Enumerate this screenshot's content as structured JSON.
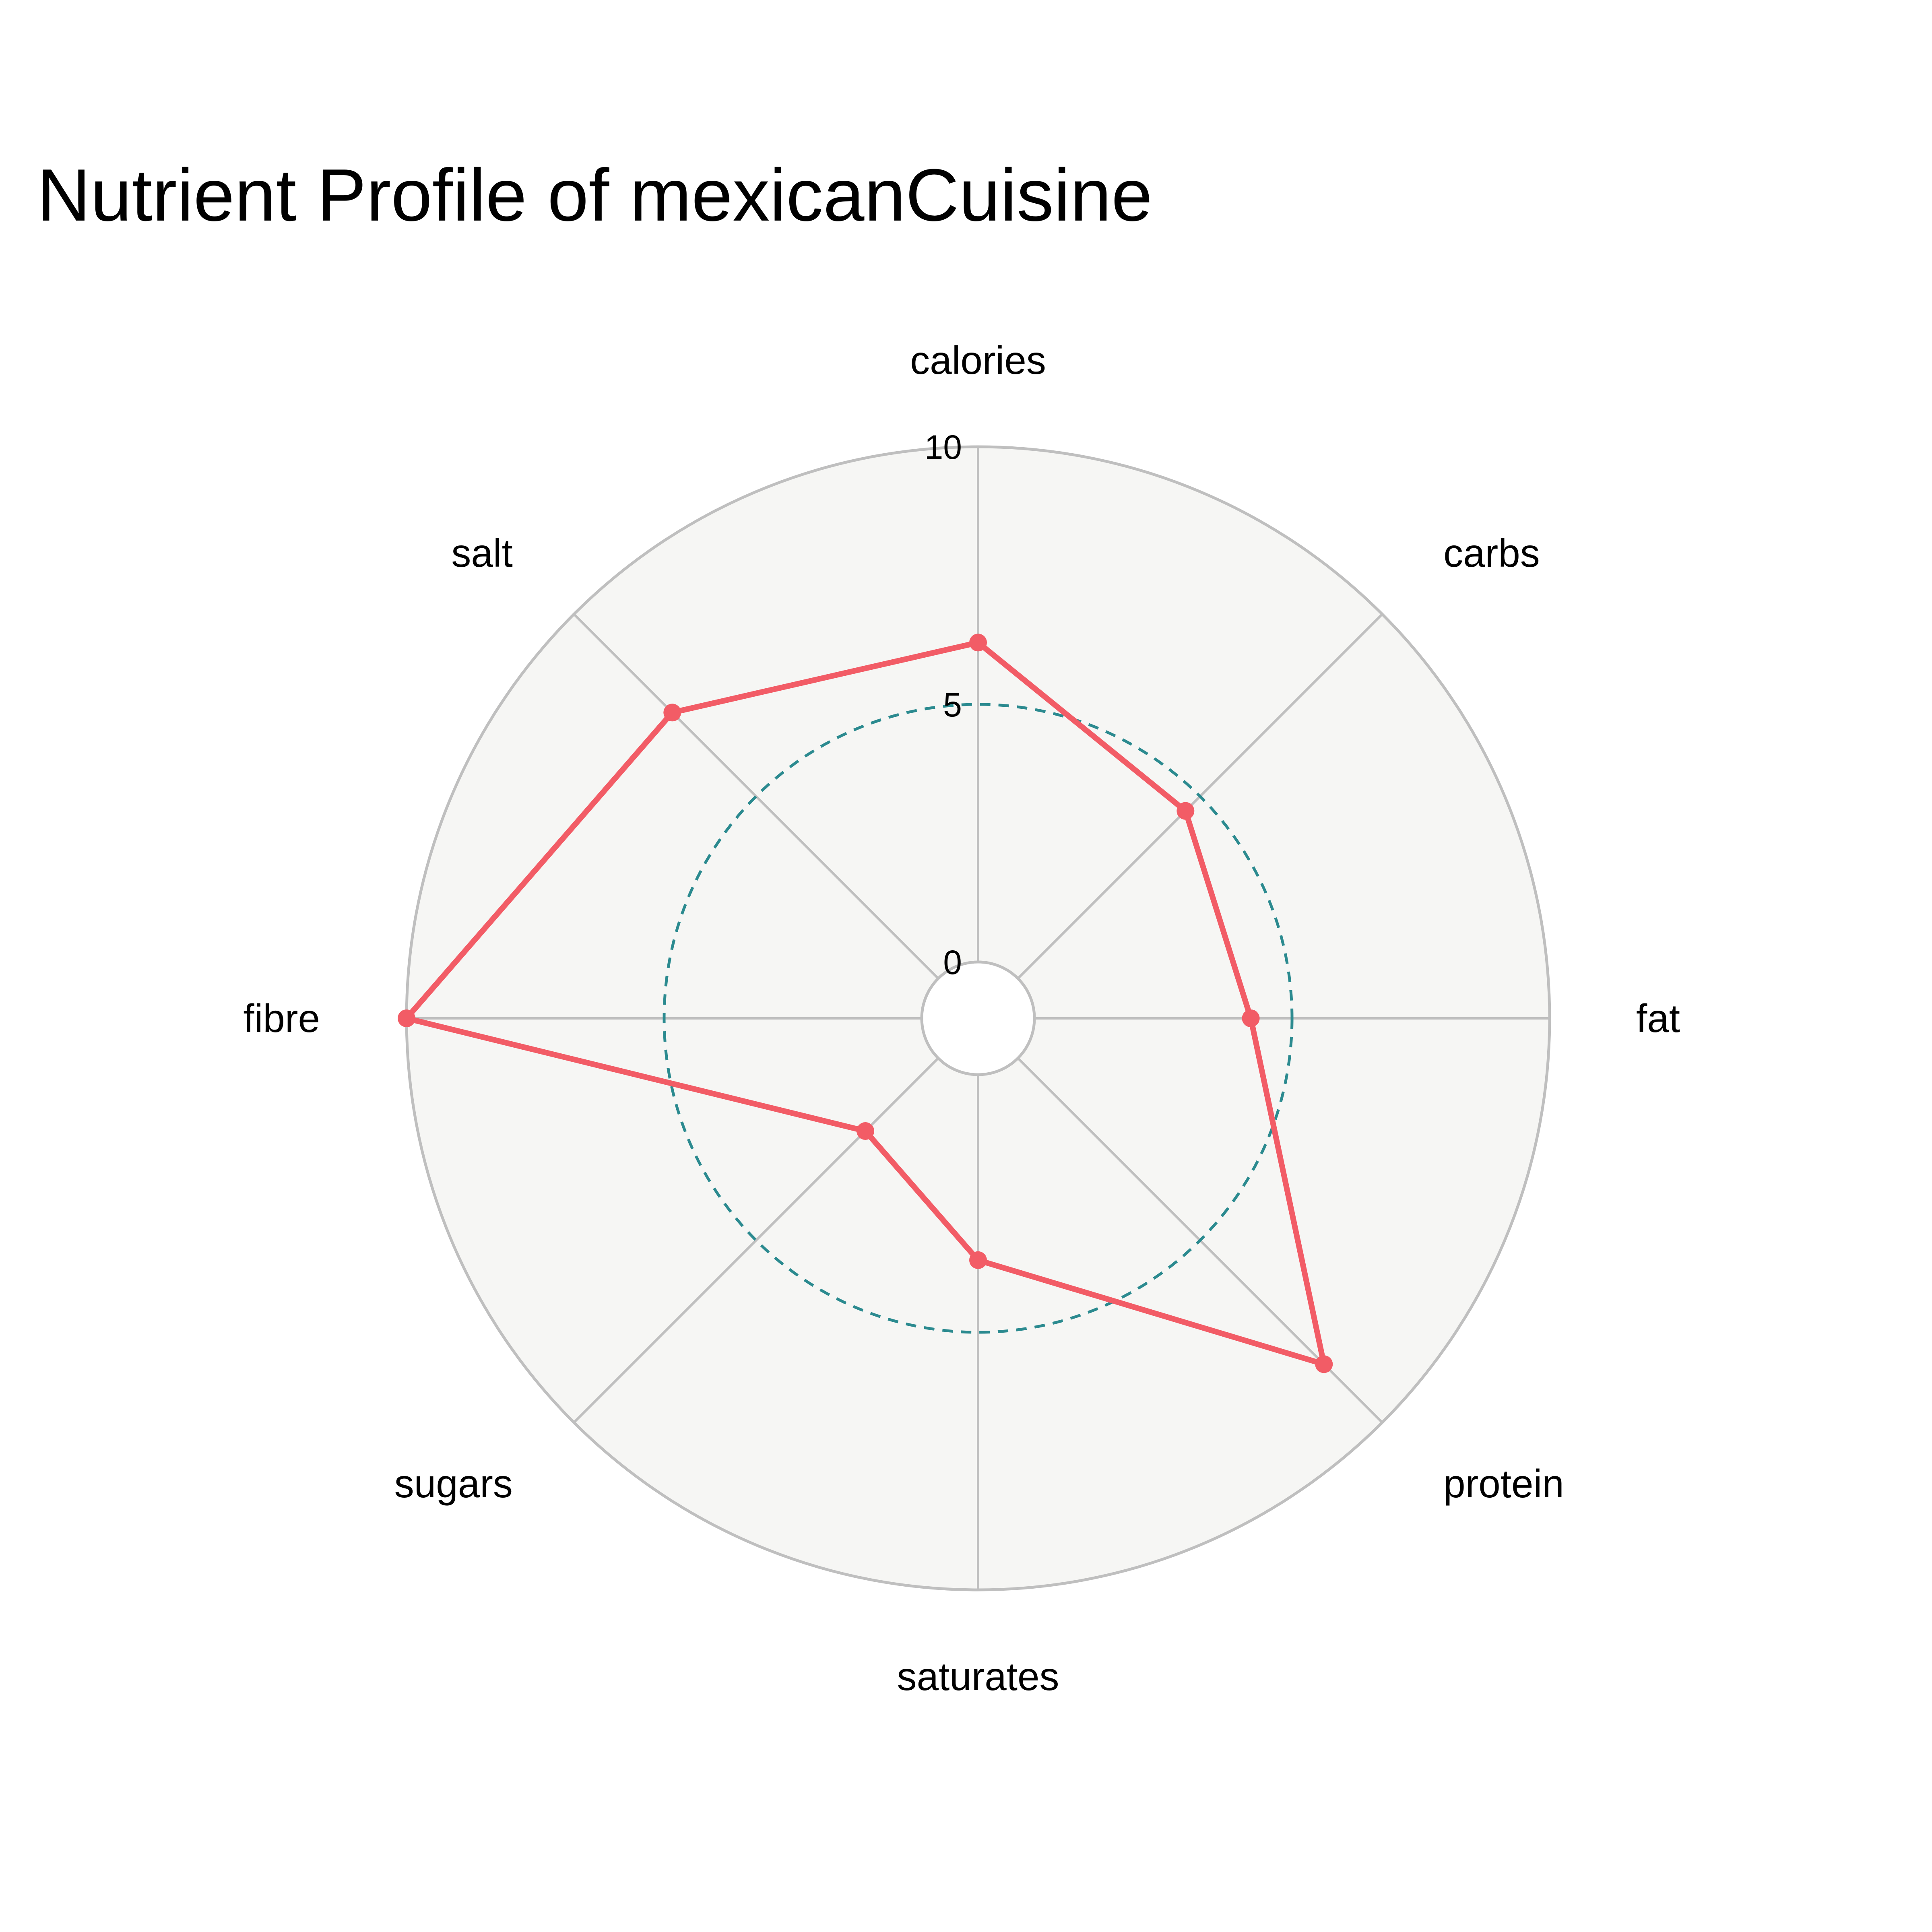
{
  "chart_data": {
    "type": "radar",
    "title": "Nutrient Profile of mexicanCuisine",
    "categories": [
      "calories",
      "carbs",
      "fat",
      "protein",
      "saturates",
      "sugars",
      "fibre",
      "salt"
    ],
    "series": [
      {
        "values": [
          6.2,
          4.6,
          4.2,
          8.4,
          3.6,
          2.0,
          10.0,
          7.3
        ]
      }
    ],
    "rlim": [
      0,
      10
    ],
    "radial_ticks": [
      "0",
      "5",
      "10"
    ],
    "reference_ring": 5,
    "colors": {
      "series": "#f25c66",
      "reference": "#2b8a8f",
      "grid": "#bfbfbf",
      "plot_background": "#f6f6f4"
    }
  }
}
